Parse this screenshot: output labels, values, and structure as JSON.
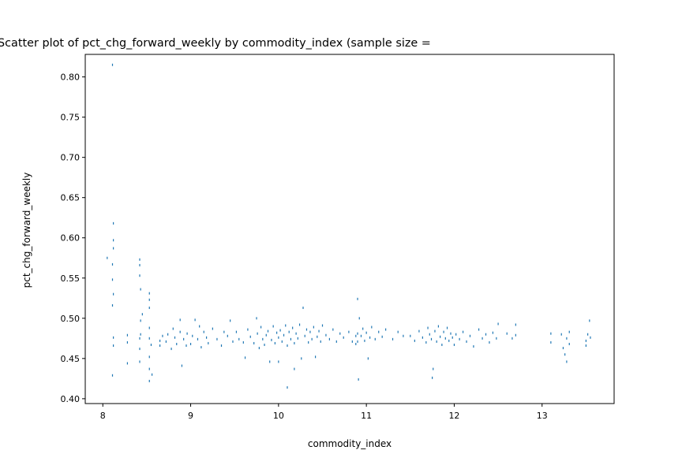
{
  "chart_data": {
    "type": "scatter",
    "title": "Scatter plot of pct_chg_forward_weekly by commodity_index (sample size = ",
    "xlabel": "commodity_index",
    "ylabel": "pct_chg_forward_weekly",
    "xlim": [
      7.8,
      13.82
    ],
    "ylim": [
      0.394,
      0.828
    ],
    "xticks": [
      8,
      9,
      10,
      11,
      12,
      13
    ],
    "xtick_labels": [
      "8",
      "9",
      "10",
      "11",
      "12",
      "13"
    ],
    "yticks": [
      0.4,
      0.45,
      0.5,
      0.55,
      0.6,
      0.65,
      0.7,
      0.75,
      0.8
    ],
    "ytick_labels": [
      "0.40",
      "0.45",
      "0.50",
      "0.55",
      "0.60",
      "0.65",
      "0.70",
      "0.75",
      "0.80"
    ],
    "grid": false,
    "marker_color": "#1f77b4",
    "series": [
      {
        "points": [
          [
            8.05,
            0.575
          ],
          [
            8.11,
            0.815
          ],
          [
            8.12,
            0.618
          ],
          [
            8.12,
            0.597
          ],
          [
            8.12,
            0.587
          ],
          [
            8.11,
            0.567
          ],
          [
            8.11,
            0.548
          ],
          [
            8.12,
            0.53
          ],
          [
            8.11,
            0.516
          ],
          [
            8.12,
            0.476
          ],
          [
            8.12,
            0.466
          ],
          [
            8.11,
            0.429
          ],
          [
            8.28,
            0.479
          ],
          [
            8.28,
            0.47
          ],
          [
            8.28,
            0.444
          ],
          [
            8.42,
            0.573
          ],
          [
            8.42,
            0.566
          ],
          [
            8.42,
            0.553
          ],
          [
            8.43,
            0.536
          ],
          [
            8.45,
            0.505
          ],
          [
            8.43,
            0.497
          ],
          [
            8.43,
            0.48
          ],
          [
            8.42,
            0.475
          ],
          [
            8.42,
            0.462
          ],
          [
            8.42,
            0.446
          ],
          [
            8.53,
            0.531
          ],
          [
            8.53,
            0.523
          ],
          [
            8.53,
            0.513
          ],
          [
            8.53,
            0.488
          ],
          [
            8.53,
            0.475
          ],
          [
            8.53,
            0.452
          ],
          [
            8.53,
            0.437
          ],
          [
            8.53,
            0.422
          ],
          [
            8.55,
            0.467
          ],
          [
            8.56,
            0.43
          ],
          [
            8.65,
            0.472
          ],
          [
            8.65,
            0.466
          ],
          [
            8.68,
            0.478
          ],
          [
            8.72,
            0.471
          ],
          [
            8.74,
            0.48
          ],
          [
            8.78,
            0.462
          ],
          [
            8.8,
            0.487
          ],
          [
            8.82,
            0.476
          ],
          [
            8.84,
            0.468
          ],
          [
            8.88,
            0.498
          ],
          [
            8.88,
            0.483
          ],
          [
            8.9,
            0.441
          ],
          [
            8.92,
            0.474
          ],
          [
            8.95,
            0.466
          ],
          [
            8.96,
            0.481
          ],
          [
            9.0,
            0.468
          ],
          [
            9.02,
            0.478
          ],
          [
            9.05,
            0.498
          ],
          [
            9.08,
            0.474
          ],
          [
            9.1,
            0.49
          ],
          [
            9.12,
            0.464
          ],
          [
            9.15,
            0.483
          ],
          [
            9.18,
            0.476
          ],
          [
            9.2,
            0.469
          ],
          [
            9.25,
            0.487
          ],
          [
            9.3,
            0.474
          ],
          [
            9.35,
            0.466
          ],
          [
            9.38,
            0.483
          ],
          [
            9.42,
            0.478
          ],
          [
            9.45,
            0.497
          ],
          [
            9.48,
            0.471
          ],
          [
            9.52,
            0.483
          ],
          [
            9.55,
            0.474
          ],
          [
            9.6,
            0.47
          ],
          [
            9.62,
            0.451
          ],
          [
            9.65,
            0.486
          ],
          [
            9.68,
            0.477
          ],
          [
            9.72,
            0.469
          ],
          [
            9.75,
            0.5
          ],
          [
            9.76,
            0.481
          ],
          [
            9.78,
            0.463
          ],
          [
            9.8,
            0.489
          ],
          [
            9.82,
            0.474
          ],
          [
            9.84,
            0.467
          ],
          [
            9.86,
            0.479
          ],
          [
            9.88,
            0.484
          ],
          [
            9.9,
            0.446
          ],
          [
            9.92,
            0.473
          ],
          [
            9.94,
            0.49
          ],
          [
            9.96,
            0.469
          ],
          [
            9.98,
            0.482
          ],
          [
            10.0,
            0.476
          ],
          [
            10.0,
            0.446
          ],
          [
            10.02,
            0.485
          ],
          [
            10.04,
            0.471
          ],
          [
            10.06,
            0.479
          ],
          [
            10.08,
            0.491
          ],
          [
            10.1,
            0.466
          ],
          [
            10.1,
            0.414
          ],
          [
            10.12,
            0.483
          ],
          [
            10.14,
            0.474
          ],
          [
            10.16,
            0.488
          ],
          [
            10.18,
            0.469
          ],
          [
            10.18,
            0.437
          ],
          [
            10.2,
            0.481
          ],
          [
            10.22,
            0.475
          ],
          [
            10.24,
            0.492
          ],
          [
            10.26,
            0.45
          ],
          [
            10.28,
            0.513
          ],
          [
            10.3,
            0.478
          ],
          [
            10.32,
            0.486
          ],
          [
            10.34,
            0.47
          ],
          [
            10.36,
            0.483
          ],
          [
            10.38,
            0.474
          ],
          [
            10.4,
            0.489
          ],
          [
            10.42,
            0.452
          ],
          [
            10.44,
            0.477
          ],
          [
            10.46,
            0.484
          ],
          [
            10.48,
            0.471
          ],
          [
            10.5,
            0.491
          ],
          [
            10.54,
            0.479
          ],
          [
            10.58,
            0.474
          ],
          [
            10.62,
            0.486
          ],
          [
            10.66,
            0.471
          ],
          [
            10.7,
            0.481
          ],
          [
            10.74,
            0.476
          ],
          [
            10.8,
            0.483
          ],
          [
            10.84,
            0.471
          ],
          [
            10.88,
            0.478
          ],
          [
            10.88,
            0.468
          ],
          [
            10.9,
            0.524
          ],
          [
            10.9,
            0.481
          ],
          [
            10.9,
            0.471
          ],
          [
            10.91,
            0.424
          ],
          [
            10.92,
            0.5
          ],
          [
            10.94,
            0.478
          ],
          [
            10.96,
            0.487
          ],
          [
            10.98,
            0.472
          ],
          [
            11.0,
            0.482
          ],
          [
            11.02,
            0.45
          ],
          [
            11.04,
            0.476
          ],
          [
            11.06,
            0.489
          ],
          [
            11.1,
            0.474
          ],
          [
            11.14,
            0.483
          ],
          [
            11.18,
            0.477
          ],
          [
            11.22,
            0.486
          ],
          [
            11.3,
            0.474
          ],
          [
            11.36,
            0.483
          ],
          [
            11.42,
            0.478
          ],
          [
            11.5,
            0.478
          ],
          [
            11.55,
            0.472
          ],
          [
            11.6,
            0.484
          ],
          [
            11.64,
            0.476
          ],
          [
            11.68,
            0.47
          ],
          [
            11.7,
            0.488
          ],
          [
            11.72,
            0.48
          ],
          [
            11.74,
            0.474
          ],
          [
            11.75,
            0.426
          ],
          [
            11.76,
            0.437
          ],
          [
            11.78,
            0.484
          ],
          [
            11.8,
            0.471
          ],
          [
            11.82,
            0.49
          ],
          [
            11.84,
            0.477
          ],
          [
            11.86,
            0.467
          ],
          [
            11.88,
            0.483
          ],
          [
            11.9,
            0.475
          ],
          [
            11.92,
            0.488
          ],
          [
            11.94,
            0.472
          ],
          [
            11.96,
            0.481
          ],
          [
            11.98,
            0.476
          ],
          [
            12.0,
            0.467
          ],
          [
            12.02,
            0.48
          ],
          [
            12.06,
            0.474
          ],
          [
            12.1,
            0.483
          ],
          [
            12.14,
            0.471
          ],
          [
            12.18,
            0.478
          ],
          [
            12.22,
            0.465
          ],
          [
            12.28,
            0.486
          ],
          [
            12.32,
            0.475
          ],
          [
            12.36,
            0.48
          ],
          [
            12.4,
            0.47
          ],
          [
            12.44,
            0.482
          ],
          [
            12.48,
            0.475
          ],
          [
            12.5,
            0.493
          ],
          [
            12.6,
            0.481
          ],
          [
            12.66,
            0.475
          ],
          [
            12.7,
            0.492
          ],
          [
            12.7,
            0.479
          ],
          [
            13.1,
            0.481
          ],
          [
            13.1,
            0.47
          ],
          [
            13.22,
            0.48
          ],
          [
            13.24,
            0.463
          ],
          [
            13.26,
            0.455
          ],
          [
            13.28,
            0.475
          ],
          [
            13.28,
            0.446
          ],
          [
            13.31,
            0.483
          ],
          [
            13.31,
            0.468
          ],
          [
            13.5,
            0.472
          ],
          [
            13.5,
            0.466
          ],
          [
            13.52,
            0.48
          ],
          [
            13.54,
            0.497
          ],
          [
            13.55,
            0.476
          ]
        ]
      }
    ]
  }
}
